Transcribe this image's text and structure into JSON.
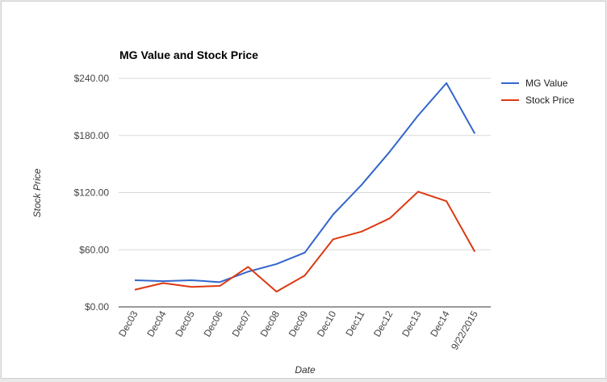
{
  "chart_data": {
    "type": "line",
    "title": "MG Value and Stock Price",
    "xlabel": "Date",
    "ylabel": "Stock Price",
    "categories": [
      "Dec03",
      "Dec04",
      "Dec05",
      "Dec06",
      "Dec07",
      "Dec08",
      "Dec09",
      "Dec10",
      "Dec11",
      "Dec12",
      "Dec13",
      "Dec14",
      "9/22/2015"
    ],
    "series": [
      {
        "name": "MG Value",
        "color": "#3366cc",
        "values": [
          28,
          27,
          28,
          26,
          37,
          45,
          57,
          97,
          128,
          163,
          201,
          235,
          182
        ]
      },
      {
        "name": "Stock Price",
        "color": "#dc3912",
        "values": [
          18,
          25,
          21,
          22,
          42,
          16,
          33,
          71,
          79,
          93,
          121,
          111,
          58
        ]
      }
    ],
    "ylim": [
      0,
      240
    ],
    "yticks": [
      {
        "value": 0,
        "label": "$0.00"
      },
      {
        "value": 60,
        "label": "$60.00"
      },
      {
        "value": 120,
        "label": "$120.00"
      },
      {
        "value": 180,
        "label": "$180.00"
      },
      {
        "value": 240,
        "label": "$240.00"
      }
    ],
    "grid": true,
    "legend": "right"
  }
}
